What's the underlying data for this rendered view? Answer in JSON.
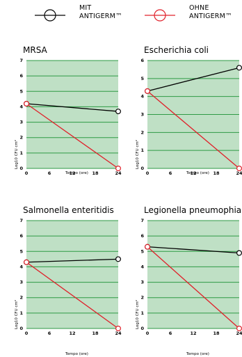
{
  "legend": {
    "with": {
      "label": "MIT\nANTIGERM™",
      "color": "#000000"
    },
    "without": {
      "label": "OHNE\nANTIGERM™",
      "color": "#e0202a"
    }
  },
  "colors": {
    "plot_bg": "#bfe0c5",
    "grid": "#2e9a45"
  },
  "chart_data": [
    {
      "type": "line",
      "title": "MRSA",
      "ylabel": "Log10 CFU cm²",
      "xlabel": "Tempo (ore)",
      "ylim": [
        0,
        7
      ],
      "yticks": [
        0,
        1,
        2,
        3,
        4,
        5,
        6,
        7
      ],
      "xticks": [
        0,
        6,
        12,
        18,
        24
      ],
      "series": [
        {
          "key": "with",
          "x": [
            0,
            24
          ],
          "y": [
            4.2,
            3.7
          ]
        },
        {
          "key": "without",
          "x": [
            0,
            24
          ],
          "y": [
            4.2,
            0
          ]
        }
      ]
    },
    {
      "type": "line",
      "title": "Escherichia coli",
      "ylabel": "Log10 CFU cm²",
      "xlabel": "Tempo (ore)",
      "ylim": [
        0,
        6
      ],
      "yticks": [
        0,
        1,
        2,
        3,
        4,
        5,
        6
      ],
      "xticks": [
        0,
        6,
        12,
        18,
        24
      ],
      "series": [
        {
          "key": "with",
          "x": [
            0,
            24
          ],
          "y": [
            4.3,
            5.6
          ]
        },
        {
          "key": "without",
          "x": [
            0,
            24
          ],
          "y": [
            4.3,
            0
          ]
        }
      ]
    },
    {
      "type": "line",
      "title": "Salmonella enteritidis",
      "ylabel": "Log10 CFU cm²",
      "xlabel": "Tempo (ore)",
      "ylim": [
        0,
        7
      ],
      "yticks": [
        0,
        1,
        2,
        3,
        4,
        5,
        6,
        7
      ],
      "xticks": [
        0,
        6,
        12,
        18,
        24
      ],
      "series": [
        {
          "key": "with",
          "x": [
            0,
            24
          ],
          "y": [
            4.3,
            4.5
          ]
        },
        {
          "key": "without",
          "x": [
            0,
            24
          ],
          "y": [
            4.3,
            0
          ]
        }
      ]
    },
    {
      "type": "line",
      "title": "Legionella pneumophia",
      "ylabel": "Log10 CFU cm²",
      "xlabel": "Tempo (ore)",
      "ylim": [
        0,
        7
      ],
      "yticks": [
        0,
        1,
        2,
        3,
        4,
        5,
        6,
        7
      ],
      "xticks": [
        0,
        6,
        12,
        18,
        24
      ],
      "series": [
        {
          "key": "with",
          "x": [
            0,
            24
          ],
          "y": [
            5.3,
            4.9
          ]
        },
        {
          "key": "without",
          "x": [
            0,
            24
          ],
          "y": [
            5.3,
            0
          ]
        }
      ]
    }
  ]
}
